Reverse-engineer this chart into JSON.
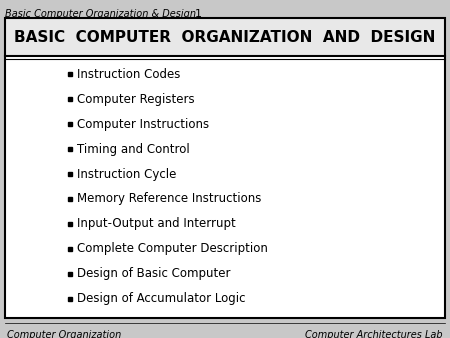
{
  "slide_title": "BASIC  COMPUTER  ORGANIZATION  AND  DESIGN",
  "header_label": "Basic Computer Organization & Design",
  "page_number": "1",
  "footer_left": "Computer Organization",
  "footer_right": "Computer Architectures Lab",
  "bullet_items": [
    "Instruction Codes",
    "Computer Registers",
    "Computer Instructions",
    "Timing and Control",
    "Instruction Cycle",
    "Memory Reference Instructions",
    "Input-Output and Interrupt",
    "Complete Computer Description",
    "Design of Basic Computer",
    "Design of Accumulator Logic"
  ],
  "bg_color": "#c8c8c8",
  "slide_bg": "#ffffff",
  "title_bg": "#e8e8e8",
  "border_color": "#000000",
  "text_color": "#000000",
  "header_fontsize": 7,
  "page_num_fontsize": 8,
  "title_fontsize": 11,
  "bullet_fontsize": 8.5,
  "footer_fontsize": 7
}
